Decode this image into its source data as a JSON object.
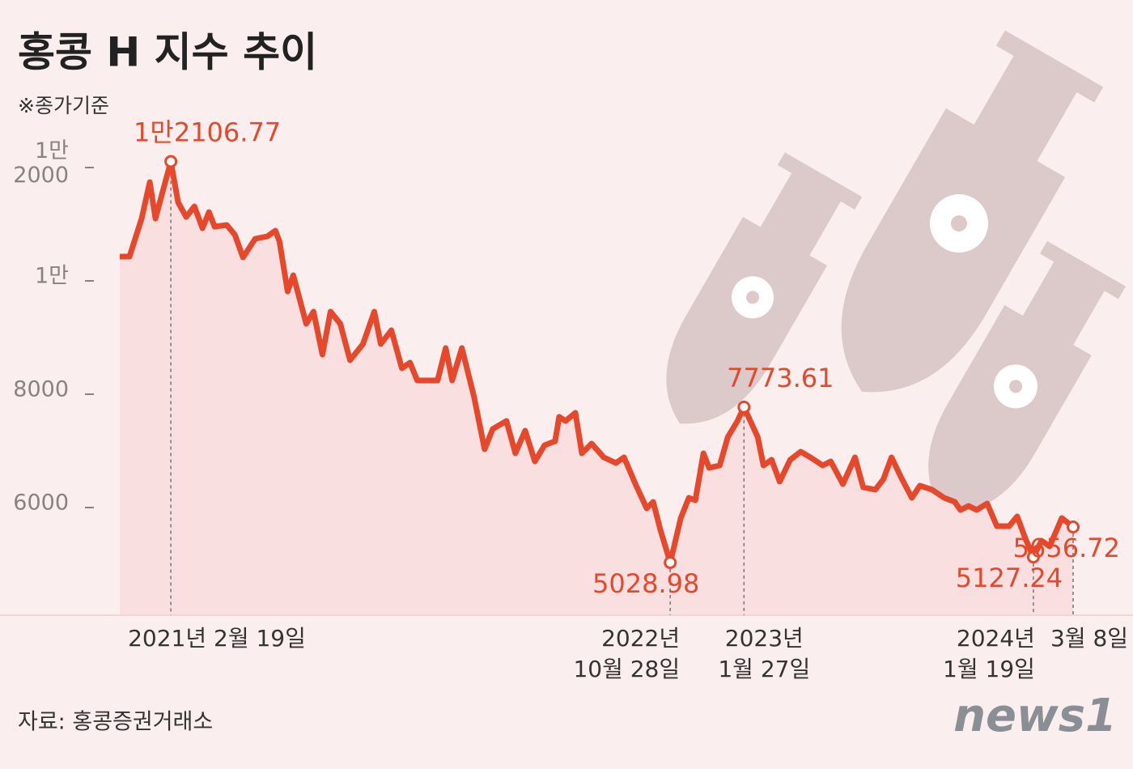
{
  "chart_data": {
    "type": "line",
    "title": "홍콩 H 지수 추이",
    "subtitle": "※종가기준",
    "source": "자료: 홍콩증권거래소",
    "brand": "news1",
    "x": [
      "2020-12-18",
      "2020-12-30",
      "2021-01-14",
      "2021-01-24",
      "2021-01-31",
      "2021-02-08",
      "2021-02-19",
      "2021-02-28",
      "2021-03-10",
      "2021-03-20",
      "2021-03-30",
      "2021-04-07",
      "2021-04-14",
      "2021-04-29",
      "2021-05-09",
      "2021-05-19",
      "2021-06-03",
      "2021-06-18",
      "2021-06-28",
      "2021-07-03",
      "2021-07-13",
      "2021-07-20",
      "2021-08-05",
      "2021-08-14",
      "2021-08-25",
      "2021-09-04",
      "2021-09-16",
      "2021-09-28",
      "2021-10-14",
      "2021-10-28",
      "2021-11-05",
      "2021-11-18",
      "2021-12-01",
      "2021-12-11",
      "2021-12-20",
      "2022-01-14",
      "2022-01-24",
      "2022-02-01",
      "2022-02-13",
      "2022-02-28",
      "2022-03-13",
      "2022-03-23",
      "2022-04-09",
      "2022-04-20",
      "2022-05-02",
      "2022-05-14",
      "2022-05-26",
      "2022-06-08",
      "2022-06-13",
      "2022-06-21",
      "2022-07-03",
      "2022-07-11",
      "2022-07-23",
      "2022-08-07",
      "2022-08-22",
      "2022-09-01",
      "2022-09-16",
      "2022-09-29",
      "2022-10-07",
      "2022-10-16",
      "2022-10-28",
      "2022-11-10",
      "2022-11-20",
      "2022-11-28",
      "2022-12-08",
      "2022-12-15",
      "2022-12-28",
      "2023-01-07",
      "2023-01-19",
      "2023-01-27",
      "2023-02-13",
      "2023-02-20",
      "2023-03-02",
      "2023-03-12",
      "2023-03-25",
      "2023-04-07",
      "2023-04-19",
      "2023-05-04",
      "2023-05-14",
      "2023-05-29",
      "2023-06-13",
      "2023-06-23",
      "2023-07-08",
      "2023-07-18",
      "2023-07-28",
      "2023-08-09",
      "2023-08-22",
      "2023-09-01",
      "2023-09-16",
      "2023-10-01",
      "2023-10-14",
      "2023-10-21",
      "2023-10-31",
      "2023-11-10",
      "2023-11-23",
      "2023-12-05",
      "2023-12-20",
      "2023-12-30",
      "2024-01-09",
      "2024-01-19",
      "2024-01-29",
      "2024-02-08",
      "2024-02-23",
      "2024-03-08"
    ],
    "series": [
      {
        "name": "H지수",
        "color": "#e5482a",
        "values": [
          10429,
          10429,
          11100,
          11743,
          11100,
          11529,
          12106.77,
          11386,
          11129,
          11314,
          10929,
          11214,
          10957,
          10986,
          10814,
          10414,
          10743,
          10786,
          10886,
          10700,
          9814,
          10100,
          9243,
          9457,
          8700,
          9457,
          9243,
          8600,
          8886,
          9457,
          8886,
          9129,
          8457,
          8557,
          8243,
          8243,
          8814,
          8243,
          8814,
          7957,
          7029,
          7386,
          7529,
          6957,
          7357,
          6814,
          7100,
          7171,
          7600,
          7529,
          7671,
          6957,
          7129,
          6886,
          6786,
          6886,
          6386,
          5986,
          6100,
          5600,
          5028.98,
          5814,
          6171,
          6129,
          6957,
          6700,
          6743,
          7243,
          7529,
          7773.61,
          7243,
          6743,
          6843,
          6457,
          6843,
          6986,
          6886,
          6743,
          6814,
          6414,
          6886,
          6357,
          6314,
          6500,
          6886,
          6529,
          6171,
          6386,
          6314,
          6171,
          6100,
          5957,
          6029,
          5957,
          6071,
          5671,
          5671,
          5843,
          5457,
          5127.24,
          5414,
          5314,
          5814,
          5656.72
        ],
        "value_labels": [
          null,
          null,
          null,
          null,
          null,
          null,
          "1만2106.77",
          null,
          null,
          null,
          null,
          null,
          null,
          null,
          null,
          null,
          null,
          null,
          null,
          null,
          null,
          null,
          null,
          null,
          null,
          null,
          null,
          null,
          null,
          null,
          null,
          null,
          null,
          null,
          null,
          null,
          null,
          null,
          null,
          null,
          null,
          null,
          null,
          null,
          null,
          null,
          null,
          null,
          null,
          null,
          null,
          null,
          null,
          null,
          null,
          null,
          null,
          null,
          null,
          null,
          "5028.98",
          null,
          null,
          null,
          null,
          null,
          null,
          null,
          null,
          "7773.61",
          null,
          null,
          null,
          null,
          null,
          null,
          null,
          null,
          null,
          null,
          null,
          null,
          null,
          null,
          null,
          null,
          null,
          null,
          null,
          null,
          null,
          null,
          null,
          null,
          null,
          null,
          null,
          null,
          null,
          "5127.24",
          null,
          null,
          null,
          "5656.72"
        ]
      }
    ],
    "xlim": [
      "2020-12-18",
      "2024-03-08"
    ],
    "xticks": [
      {
        "value": "2021-02-19",
        "label": "2021년 2월 19일"
      },
      {
        "value": "2022-10-28",
        "label": "2022년\n10월 28일"
      },
      {
        "value": "2023-01-27",
        "label": "2023년\n1월 27일"
      },
      {
        "value": "2024-01-19",
        "label": "2024년\n1월 19일"
      },
      {
        "value": "2024-03-08",
        "label": "3월 8일"
      }
    ],
    "ylim": [
      4100,
      12400
    ],
    "yticks": [
      6000,
      8000,
      {
        "value": 10000,
        "label": "1만"
      },
      {
        "value": 12000,
        "label": "1만\n2000"
      }
    ]
  }
}
